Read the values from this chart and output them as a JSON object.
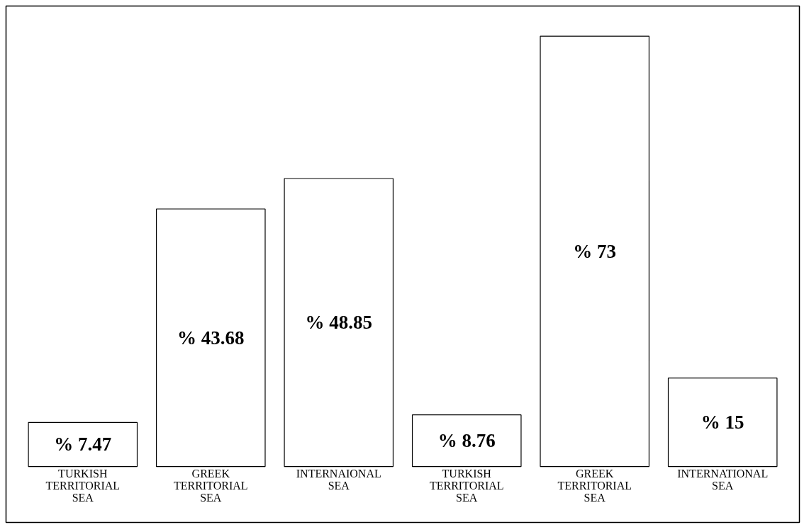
{
  "chart_data": {
    "type": "bar",
    "categories": [
      "TURKISH TERRITORIAL SEA",
      "GREEK TERRITORIAL SEA",
      "INTERNAIONAL SEA",
      "TURKISH TERRITORIAL SEA",
      "GREEK TERRITORIAL SEA",
      "INTERNATIONAL SEA"
    ],
    "values": [
      7.47,
      43.68,
      48.85,
      8.76,
      73,
      15
    ],
    "value_labels": [
      "% 7.47",
      "% 43.68",
      "% 48.85",
      "% 8.76",
      "% 73",
      "% 15"
    ],
    "color": "#ffffff",
    "grid": false,
    "tick_labels": "x"
  }
}
